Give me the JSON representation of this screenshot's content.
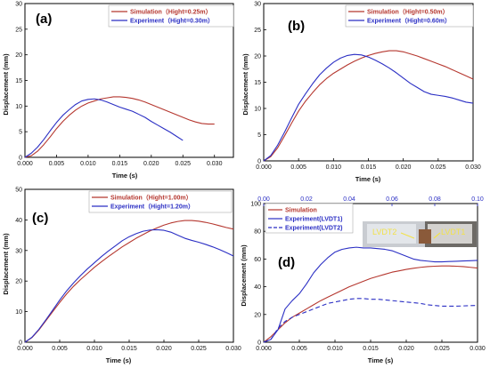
{
  "chart_data": [
    {
      "type": "line",
      "panel_label": "(a)",
      "xlabel": "Time (s)",
      "ylabel": "Displacement (mm)",
      "xlim": [
        0,
        0.033
      ],
      "ylim": [
        0,
        30
      ],
      "xticks": [
        0.0,
        0.005,
        0.01,
        0.015,
        0.02,
        0.025,
        0.03
      ],
      "xtick_labels": [
        "0.000",
        "0.005",
        "0.010",
        "0.015",
        "0.020",
        "0.025",
        "0.030"
      ],
      "yticks": [
        0,
        5,
        10,
        15,
        20,
        25,
        30
      ],
      "ytick_labels": [
        "0",
        "5",
        "10",
        "15",
        "20",
        "25",
        "30"
      ],
      "legend_position": "top-right",
      "series": [
        {
          "name": "Simulation（Hight=0.25m）",
          "color": "#b5372f",
          "dash": "solid",
          "x": [
            0,
            0.001,
            0.002,
            0.003,
            0.004,
            0.005,
            0.006,
            0.007,
            0.008,
            0.009,
            0.01,
            0.011,
            0.012,
            0.013,
            0.014,
            0.015,
            0.016,
            0.017,
            0.018,
            0.019,
            0.02,
            0.021,
            0.022,
            0.023,
            0.024,
            0.025,
            0.026,
            0.027,
            0.028,
            0.029,
            0.03
          ],
          "y": [
            0,
            0.3,
            1.2,
            2.5,
            4.0,
            5.6,
            7.0,
            8.2,
            9.2,
            10.0,
            10.6,
            11.0,
            11.4,
            11.6,
            11.8,
            11.8,
            11.7,
            11.5,
            11.2,
            10.8,
            10.3,
            9.8,
            9.3,
            8.8,
            8.3,
            7.8,
            7.3,
            6.9,
            6.6,
            6.5,
            6.5
          ]
        },
        {
          "name": "Experiment（Hight=0.30m）",
          "color": "#2b2fc4",
          "dash": "solid",
          "x": [
            0,
            0.001,
            0.002,
            0.003,
            0.004,
            0.005,
            0.006,
            0.007,
            0.008,
            0.009,
            0.01,
            0.011,
            0.012,
            0.013,
            0.014,
            0.015,
            0.016,
            0.017,
            0.018,
            0.019,
            0.02,
            0.021,
            0.022,
            0.023,
            0.024,
            0.025
          ],
          "y": [
            0,
            0.8,
            2.0,
            3.5,
            5.2,
            6.8,
            8.2,
            9.3,
            10.3,
            11.0,
            11.3,
            11.4,
            11.2,
            10.8,
            10.3,
            9.8,
            9.4,
            9.0,
            8.4,
            7.8,
            7.0,
            6.3,
            5.6,
            4.9,
            4.1,
            3.3
          ]
        }
      ]
    },
    {
      "type": "line",
      "panel_label": "(b)",
      "xlabel": "Time (s)",
      "ylabel": "Displacement (mm)",
      "xlim": [
        0,
        0.03
      ],
      "ylim": [
        0,
        30
      ],
      "xticks": [
        0.0,
        0.005,
        0.01,
        0.015,
        0.02,
        0.025,
        0.03
      ],
      "xtick_labels": [
        "0.000",
        "0.005",
        "0.010",
        "0.015",
        "0.020",
        "0.025",
        "0.030"
      ],
      "yticks": [
        0,
        5,
        10,
        15,
        20,
        25,
        30
      ],
      "ytick_labels": [
        "0",
        "5",
        "10",
        "15",
        "20",
        "25",
        "30"
      ],
      "legend_position": "top-right",
      "series": [
        {
          "name": "Simulation（Hight=0.50m）",
          "color": "#b5372f",
          "dash": "solid",
          "x": [
            0,
            0.001,
            0.002,
            0.003,
            0.004,
            0.005,
            0.006,
            0.007,
            0.008,
            0.009,
            0.01,
            0.011,
            0.012,
            0.013,
            0.014,
            0.015,
            0.016,
            0.017,
            0.018,
            0.019,
            0.02,
            0.021,
            0.022,
            0.023,
            0.024,
            0.025,
            0.026,
            0.027,
            0.028,
            0.029,
            0.03
          ],
          "y": [
            0,
            0.8,
            2.5,
            4.8,
            7.2,
            9.5,
            11.4,
            13.0,
            14.5,
            15.7,
            16.7,
            17.5,
            18.3,
            19.0,
            19.6,
            20.1,
            20.5,
            20.8,
            21.0,
            21.0,
            20.8,
            20.4,
            20.0,
            19.5,
            19.0,
            18.5,
            18.0,
            17.4,
            16.8,
            16.2,
            15.6
          ]
        },
        {
          "name": "Experiment（Hight=0.60m）",
          "color": "#2b2fc4",
          "dash": "solid",
          "x": [
            0,
            0.001,
            0.002,
            0.003,
            0.004,
            0.005,
            0.006,
            0.007,
            0.008,
            0.009,
            0.01,
            0.011,
            0.012,
            0.013,
            0.014,
            0.015,
            0.016,
            0.017,
            0.018,
            0.019,
            0.02,
            0.021,
            0.022,
            0.023,
            0.024,
            0.025,
            0.026,
            0.027,
            0.028,
            0.029,
            0.03
          ],
          "y": [
            0,
            1.0,
            3.0,
            5.5,
            8.2,
            10.8,
            12.8,
            14.7,
            16.4,
            17.7,
            18.8,
            19.6,
            20.1,
            20.3,
            20.2,
            19.8,
            19.2,
            18.5,
            17.7,
            16.8,
            15.8,
            14.8,
            14.0,
            13.2,
            12.7,
            12.5,
            12.3,
            12.0,
            11.6,
            11.2,
            11.0
          ]
        }
      ]
    },
    {
      "type": "line",
      "panel_label": "(c)",
      "xlabel": "Time (s)",
      "ylabel": "Displacement (mm)",
      "xlim": [
        0,
        0.03
      ],
      "ylim": [
        0,
        50
      ],
      "xticks": [
        0.0,
        0.005,
        0.01,
        0.015,
        0.02,
        0.025,
        0.03
      ],
      "xtick_labels": [
        "0.000",
        "0.005",
        "0.010",
        "0.015",
        "0.020",
        "0.025",
        "0.030"
      ],
      "yticks": [
        0,
        10,
        20,
        30,
        40,
        50
      ],
      "ytick_labels": [
        "0",
        "10",
        "20",
        "30",
        "40",
        "50"
      ],
      "legend_position": "top-right",
      "series": [
        {
          "name": "Simulation（Hight=1.00m）",
          "color": "#b5372f",
          "dash": "solid",
          "x": [
            0,
            0.001,
            0.002,
            0.003,
            0.004,
            0.005,
            0.006,
            0.007,
            0.008,
            0.009,
            0.01,
            0.011,
            0.012,
            0.013,
            0.014,
            0.015,
            0.016,
            0.017,
            0.018,
            0.019,
            0.02,
            0.021,
            0.022,
            0.023,
            0.024,
            0.025,
            0.026,
            0.027,
            0.028,
            0.029,
            0.03
          ],
          "y": [
            0,
            1.5,
            4.0,
            7.0,
            10.0,
            13.0,
            15.8,
            18.3,
            20.5,
            22.5,
            24.5,
            26.3,
            28.0,
            29.6,
            31.2,
            32.6,
            34.0,
            35.2,
            36.4,
            37.4,
            38.3,
            39.0,
            39.5,
            39.8,
            39.8,
            39.6,
            39.2,
            38.7,
            38.1,
            37.5,
            37.0
          ]
        },
        {
          "name": "Experiment（Hight=1.20m）",
          "color": "#2b2fc4",
          "dash": "solid",
          "x": [
            0,
            0.001,
            0.002,
            0.003,
            0.004,
            0.005,
            0.006,
            0.007,
            0.008,
            0.009,
            0.01,
            0.011,
            0.012,
            0.013,
            0.014,
            0.015,
            0.016,
            0.017,
            0.018,
            0.019,
            0.02,
            0.021,
            0.022,
            0.023,
            0.024,
            0.025,
            0.026,
            0.027,
            0.028,
            0.029,
            0.03
          ],
          "y": [
            0,
            1.6,
            4.2,
            7.3,
            10.5,
            13.8,
            16.8,
            19.4,
            21.8,
            24.0,
            26.0,
            28.0,
            29.8,
            31.5,
            33.2,
            34.5,
            35.5,
            36.3,
            36.7,
            36.8,
            36.6,
            36.0,
            35.0,
            34.0,
            33.3,
            32.7,
            32.0,
            31.2,
            30.3,
            29.3,
            28.2
          ]
        }
      ]
    },
    {
      "type": "line",
      "panel_label": "(d)",
      "xlabel": "Time (s)",
      "ylabel": "Displacement (mm)",
      "xlim": [
        0,
        0.03
      ],
      "ylim": [
        0,
        100
      ],
      "xticks": [
        0.0,
        0.005,
        0.01,
        0.015,
        0.02,
        0.025,
        0.03
      ],
      "xtick_labels": [
        "0.000",
        "0.005",
        "0.010",
        "0.015",
        "0.020",
        "0.025",
        "0.030"
      ],
      "x2ticks": [
        0.0,
        0.02,
        0.04,
        0.06,
        0.08,
        0.1
      ],
      "x2tick_labels": [
        "0.00",
        "0.02",
        "0.04",
        "0.06",
        "0.08",
        "0.10"
      ],
      "x2lim": [
        0,
        0.1
      ],
      "yticks": [
        0,
        20,
        40,
        60,
        80,
        100
      ],
      "ytick_labels": [
        "0",
        "20",
        "40",
        "60",
        "80",
        "100"
      ],
      "legend_position": "top-left",
      "inset_labels": [
        "LVDT2",
        "LVDT1"
      ],
      "series": [
        {
          "name": "Simulation",
          "color": "#b5372f",
          "dash": "solid",
          "axis": "bottom",
          "x": [
            0,
            0.001,
            0.002,
            0.003,
            0.004,
            0.005,
            0.006,
            0.007,
            0.008,
            0.009,
            0.01,
            0.011,
            0.012,
            0.013,
            0.014,
            0.015,
            0.016,
            0.017,
            0.018,
            0.019,
            0.02,
            0.021,
            0.022,
            0.023,
            0.024,
            0.025,
            0.026,
            0.027,
            0.028,
            0.029,
            0.03
          ],
          "y": [
            0,
            4,
            9,
            14,
            18,
            21,
            24,
            27,
            30,
            32.5,
            35,
            37.5,
            40,
            42,
            44,
            46,
            47.5,
            49,
            50.5,
            51.5,
            52.5,
            53.3,
            54,
            54.5,
            54.8,
            55,
            55,
            54.8,
            54.5,
            54,
            53.5
          ]
        },
        {
          "name": "Experiment(LVDT1)",
          "color": "#2b2fc4",
          "dash": "solid",
          "axis": "bottom",
          "x": [
            0,
            0.001,
            0.002,
            0.003,
            0.004,
            0.005,
            0.006,
            0.007,
            0.008,
            0.009,
            0.01,
            0.011,
            0.012,
            0.013,
            0.014,
            0.015,
            0.016,
            0.017,
            0.018,
            0.019,
            0.02,
            0.021,
            0.022,
            0.023,
            0.024,
            0.025,
            0.026,
            0.027,
            0.028,
            0.029,
            0.03
          ],
          "y": [
            0,
            2,
            9,
            24,
            30,
            35,
            42,
            50,
            56,
            61,
            65,
            67,
            68,
            68.5,
            68,
            68,
            67.5,
            67,
            66,
            64,
            62,
            60,
            59,
            58.5,
            58,
            58,
            58.2,
            58.4,
            58.6,
            58.8,
            59
          ]
        },
        {
          "name": "Experiment(LVDT2)",
          "color": "#2b2fc4",
          "dash": "dashed",
          "axis": "bottom",
          "x": [
            0,
            0.001,
            0.002,
            0.003,
            0.004,
            0.005,
            0.006,
            0.007,
            0.008,
            0.009,
            0.01,
            0.011,
            0.012,
            0.013,
            0.014,
            0.015,
            0.016,
            0.017,
            0.018,
            0.019,
            0.02,
            0.021,
            0.022,
            0.023,
            0.024,
            0.025,
            0.026,
            0.027,
            0.028,
            0.029,
            0.03
          ],
          "y": [
            0,
            2,
            10,
            15,
            18,
            20,
            22,
            24,
            26,
            28,
            29,
            30,
            31,
            31.5,
            31.5,
            31,
            31,
            30.5,
            30,
            29.5,
            29,
            28.5,
            28,
            27,
            26.5,
            26,
            26,
            26,
            26.2,
            26.4,
            26.5
          ]
        }
      ]
    }
  ]
}
